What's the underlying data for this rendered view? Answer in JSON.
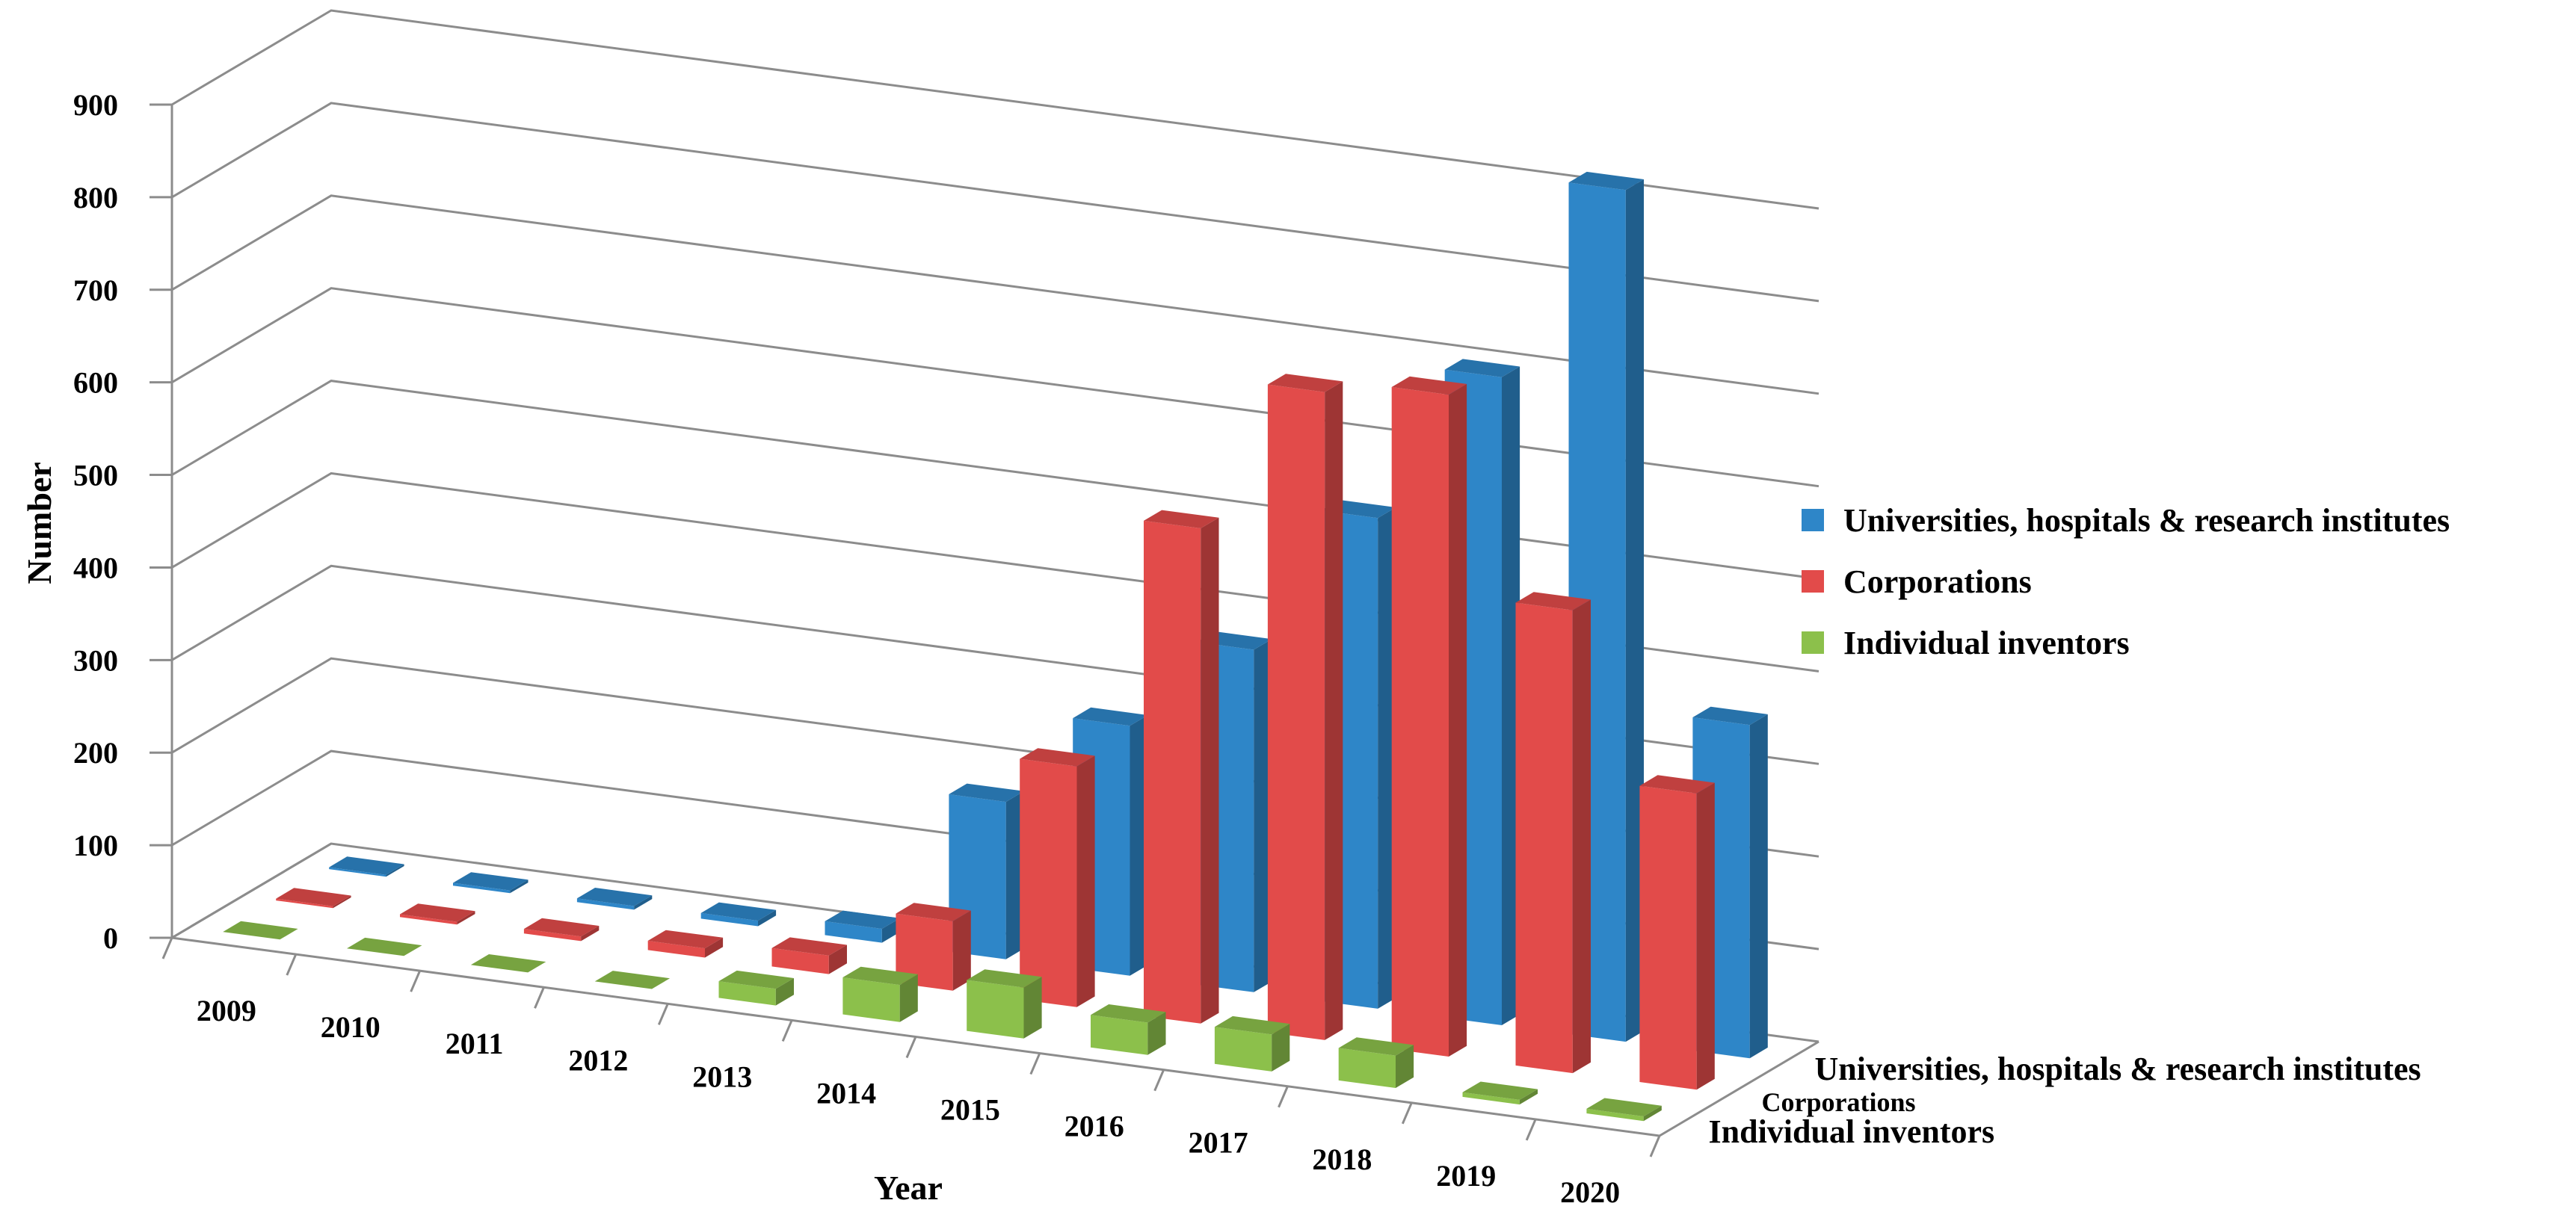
{
  "chart_data": {
    "type": "bar",
    "subtype": "3d-clustered-column",
    "title": "",
    "xlabel": "Year",
    "ylabel": "Number",
    "ylim": [
      0,
      900
    ],
    "yticks": [
      0,
      100,
      200,
      300,
      400,
      500,
      600,
      700,
      800,
      900
    ],
    "categories": [
      "2009",
      "2010",
      "2011",
      "2012",
      "2013",
      "2014",
      "2015",
      "2016",
      "2017",
      "2018",
      "2019",
      "2020"
    ],
    "series": [
      {
        "name": "Universities, hospitals & research institutes",
        "depth_label": "Universities, hospitals & research institutes",
        "color": "#2E86C8",
        "values": [
          2,
          3,
          4,
          6,
          15,
          170,
          270,
          370,
          530,
          700,
          920,
          360
        ]
      },
      {
        "name": "Corporations",
        "depth_label": "Corporations",
        "color": "#E24B4A",
        "values": [
          2,
          3,
          5,
          10,
          20,
          75,
          260,
          535,
          700,
          715,
          500,
          320
        ]
      },
      {
        "name": "Individual inventors",
        "depth_label": "Individual inventors",
        "color": "#8CC04B",
        "values": [
          0,
          0,
          0,
          0,
          18,
          40,
          55,
          35,
          40,
          35,
          5,
          5
        ]
      }
    ],
    "legend_position": "right",
    "grid": true
  }
}
